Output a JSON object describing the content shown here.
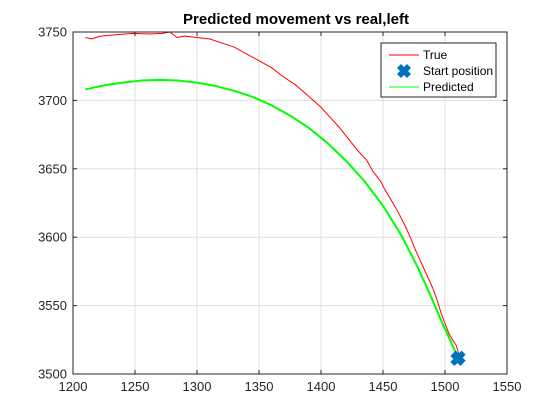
{
  "chart_data": {
    "type": "line",
    "title": "Predicted movement vs real,left",
    "xlabel": "",
    "ylabel": "",
    "xlim": [
      1200,
      1550
    ],
    "ylim": [
      3500,
      3750
    ],
    "xticks": [
      1200,
      1250,
      1300,
      1350,
      1400,
      1450,
      1500,
      1550
    ],
    "yticks": [
      3500,
      3550,
      3600,
      3650,
      3700,
      3750
    ],
    "grid": true,
    "legend": {
      "placement": "top-right"
    },
    "series": [
      {
        "name": "True",
        "kind": "line",
        "color": "#ff0000",
        "points": [
          [
            1210,
            3746
          ],
          [
            1215,
            3745
          ],
          [
            1222,
            3747
          ],
          [
            1235,
            3748
          ],
          [
            1248,
            3749
          ],
          [
            1262,
            3748.5
          ],
          [
            1272,
            3749
          ],
          [
            1278,
            3750
          ],
          [
            1284,
            3746
          ],
          [
            1290,
            3747
          ],
          [
            1300,
            3746
          ],
          [
            1310,
            3745
          ],
          [
            1320,
            3742
          ],
          [
            1330,
            3739
          ],
          [
            1340,
            3734
          ],
          [
            1350,
            3729
          ],
          [
            1360,
            3724
          ],
          [
            1370,
            3717
          ],
          [
            1380,
            3711
          ],
          [
            1390,
            3703
          ],
          [
            1400,
            3695
          ],
          [
            1408,
            3687
          ],
          [
            1415,
            3680
          ],
          [
            1422,
            3672
          ],
          [
            1430,
            3663
          ],
          [
            1437,
            3656
          ],
          [
            1442,
            3648
          ],
          [
            1448,
            3641
          ],
          [
            1452,
            3634
          ],
          [
            1458,
            3625
          ],
          [
            1463,
            3617
          ],
          [
            1468,
            3608
          ],
          [
            1472,
            3600
          ],
          [
            1476,
            3591
          ],
          [
            1480,
            3583
          ],
          [
            1485,
            3573
          ],
          [
            1490,
            3563
          ],
          [
            1494,
            3553
          ],
          [
            1497,
            3544
          ],
          [
            1500,
            3537
          ],
          [
            1503,
            3530
          ],
          [
            1506,
            3525
          ],
          [
            1509,
            3521
          ],
          [
            1510,
            3518
          ],
          [
            1511,
            3515
          ],
          [
            1510,
            3512
          ]
        ]
      },
      {
        "name": "Start position",
        "kind": "marker",
        "color": "#0072bd",
        "points": [
          [
            1511,
            3512
          ],
          [
            1510,
            3511
          ]
        ]
      },
      {
        "name": "Predicted",
        "kind": "line",
        "color": "#00ff00",
        "points": [
          [
            1210,
            3708
          ],
          [
            1225,
            3711
          ],
          [
            1240,
            3713
          ],
          [
            1255,
            3714.5
          ],
          [
            1270,
            3715
          ],
          [
            1285,
            3714.5
          ],
          [
            1300,
            3713
          ],
          [
            1315,
            3710.5
          ],
          [
            1330,
            3707
          ],
          [
            1345,
            3702.5
          ],
          [
            1360,
            3696.5
          ],
          [
            1375,
            3689
          ],
          [
            1390,
            3680
          ],
          [
            1405,
            3669
          ],
          [
            1420,
            3656
          ],
          [
            1435,
            3641
          ],
          [
            1450,
            3623
          ],
          [
            1465,
            3601
          ],
          [
            1478,
            3578
          ],
          [
            1488,
            3558
          ],
          [
            1496,
            3541
          ],
          [
            1502,
            3529
          ],
          [
            1506,
            3521
          ],
          [
            1509,
            3515
          ]
        ]
      }
    ]
  }
}
